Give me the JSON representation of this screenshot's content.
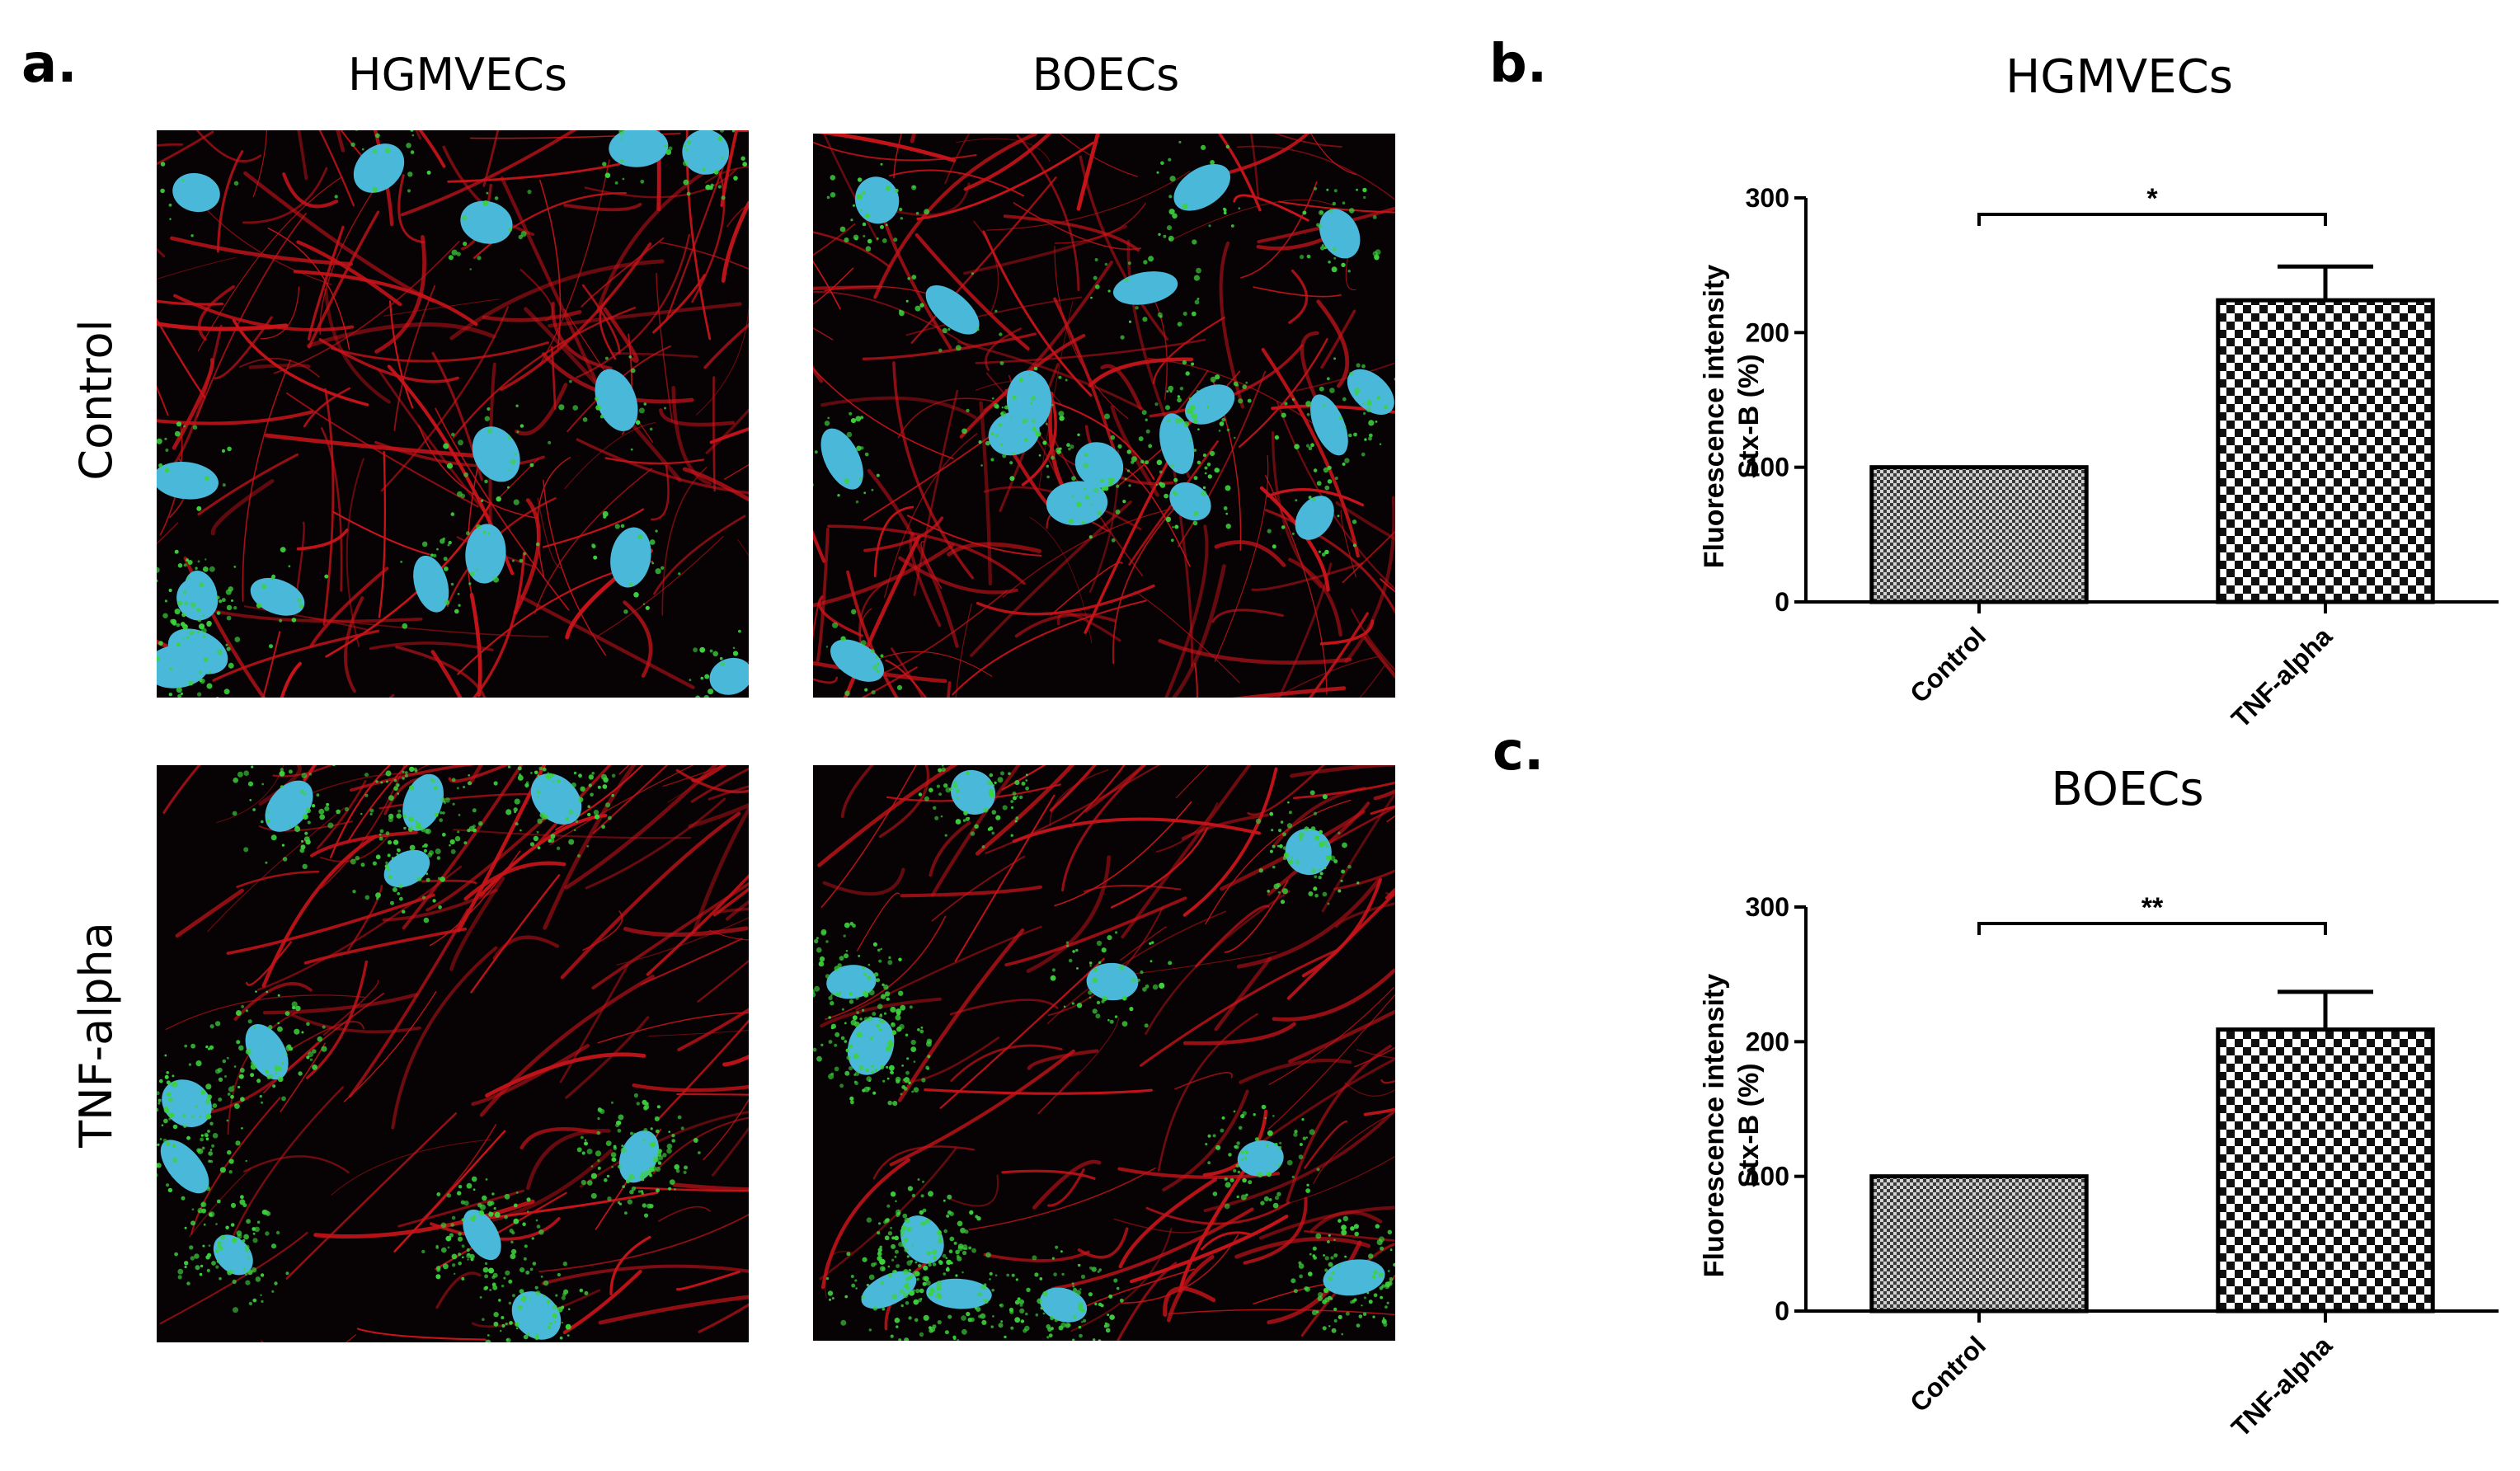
{
  "figure": {
    "panel_labels": {
      "a": "a.",
      "b": "b.",
      "c": "c."
    },
    "column_headers": [
      "HGMVECs",
      "BOECs"
    ],
    "row_headers": [
      "Control",
      "TNF-alpha"
    ],
    "micrographs": [
      {
        "row": "Control",
        "column": "HGMVECs"
      },
      {
        "row": "Control",
        "column": "BOECs"
      },
      {
        "row": "TNF-alpha",
        "column": "HGMVECs"
      },
      {
        "row": "TNF-alpha",
        "column": "BOECs"
      }
    ],
    "colors": {
      "actin_red": "#c8141a",
      "nucleus_cyan": "#4ab8d8",
      "stxb_green": "#3cd23c",
      "background": "#070204"
    }
  },
  "chart_data": [
    {
      "panel": "b.",
      "type": "bar",
      "title": "HGMVECs",
      "categories": [
        "Control",
        "TNF-alpha"
      ],
      "values": [
        100,
        224
      ],
      "error_upper": [
        0,
        25
      ],
      "ylabel": "Fluorescence intensity Stx-B (%)",
      "ylabel_lines": [
        "Fluorescence intensity",
        "Stx-B (%)"
      ],
      "xlabel": "",
      "ylim": [
        0,
        300
      ],
      "yticks": [
        0,
        100,
        200,
        300
      ],
      "significance": "*",
      "fill_patterns": [
        "fine-checker",
        "coarse-checker"
      ]
    },
    {
      "panel": "c.",
      "type": "bar",
      "title": "BOECs",
      "categories": [
        "Control",
        "TNF-alpha"
      ],
      "values": [
        100,
        209
      ],
      "error_upper": [
        0,
        28
      ],
      "ylabel": "Fluorescence intensity Stx-B (%)",
      "ylabel_lines": [
        "Fluorescence intensity",
        "Stx-B (%)"
      ],
      "xlabel": "",
      "ylim": [
        0,
        300
      ],
      "yticks": [
        0,
        100,
        200,
        300
      ],
      "significance": "**",
      "fill_patterns": [
        "fine-checker",
        "coarse-checker"
      ]
    }
  ]
}
